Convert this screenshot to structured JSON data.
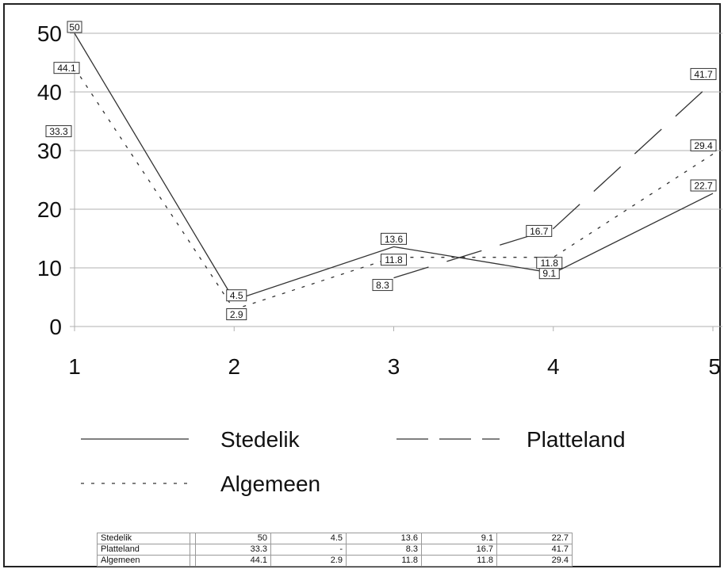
{
  "chart_data": {
    "type": "line",
    "title": "",
    "xlabel": "",
    "ylabel": "",
    "x": [
      1,
      2,
      3,
      4,
      5
    ],
    "x_tick_labels": [
      "1",
      "2",
      "3",
      "4",
      "5"
    ],
    "y_tick_labels": [
      "0",
      "10",
      "20",
      "30",
      "40",
      "50"
    ],
    "ylim": [
      0,
      50
    ],
    "grid": true,
    "legend_position": "bottom",
    "series": [
      {
        "name": "Stedelik",
        "style": "solid",
        "values": [
          50,
          4.5,
          13.6,
          9.1,
          22.7
        ],
        "labels": [
          "50",
          "4.5",
          "13.6",
          "9.1",
          "22.7"
        ]
      },
      {
        "name": "Platteland",
        "style": "long-dash",
        "values": [
          33.3,
          null,
          8.3,
          16.7,
          41.7
        ],
        "labels": [
          "33.3",
          "-",
          "8.3",
          "16.7",
          "41.7"
        ]
      },
      {
        "name": "Algemeen",
        "style": "dotted",
        "values": [
          44.1,
          2.9,
          11.8,
          11.8,
          29.4
        ],
        "labels": [
          "44.1",
          "2.9",
          "11.8",
          "11.8",
          "29.4"
        ]
      }
    ],
    "colors": {
      "line": "#333333",
      "grid": "#b0b0b0",
      "text": "#111111"
    }
  }
}
